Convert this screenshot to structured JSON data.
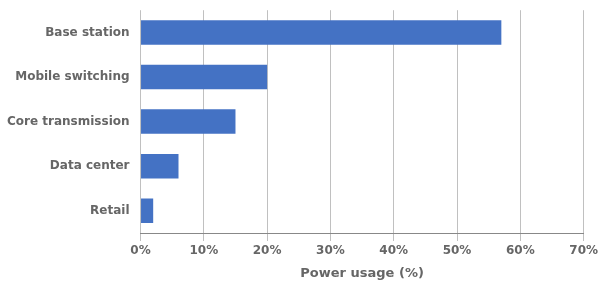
{
  "chart_data": {
    "type": "bar",
    "orientation": "horizontal",
    "categories": [
      "Retail",
      "Data center",
      "Core transmission",
      "Mobile switching",
      "Base station"
    ],
    "values": [
      2,
      6,
      15,
      20,
      57
    ],
    "color": "#4472C4",
    "xlabel": "Power usage (%)",
    "xlim": [
      0,
      70
    ],
    "xticks": [
      {
        "value": 0,
        "label": "0%"
      },
      {
        "value": 10,
        "label": "10%"
      },
      {
        "value": 20,
        "label": "20%"
      },
      {
        "value": 30,
        "label": "30%"
      },
      {
        "value": 40,
        "label": "40%"
      },
      {
        "value": 50,
        "label": "50%"
      },
      {
        "value": 60,
        "label": "60%"
      },
      {
        "value": 70,
        "label": "70%"
      }
    ],
    "grid": true
  }
}
